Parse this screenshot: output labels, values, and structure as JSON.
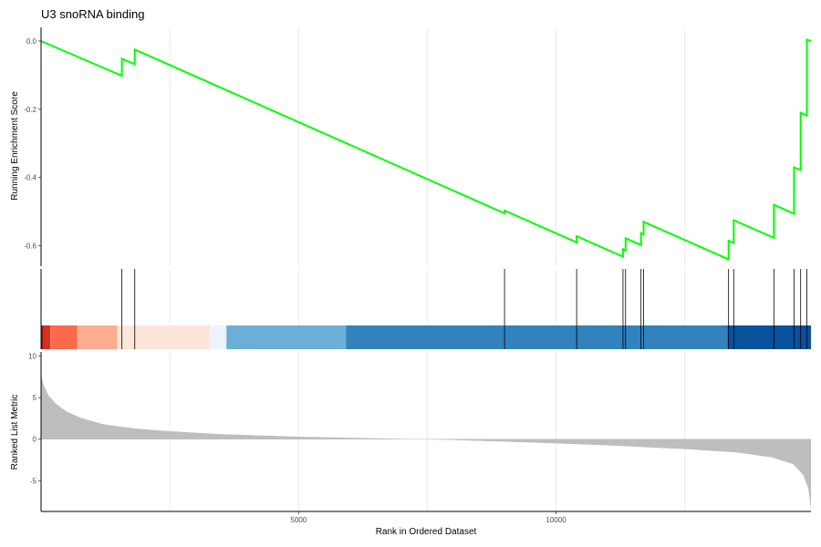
{
  "chart_data": {
    "type": "line",
    "title": "U3 snoRNA binding",
    "xlabel": "Rank in Ordered Dataset",
    "x_ticks": [
      5000,
      10000
    ],
    "xlim": [
      0,
      14950
    ],
    "panels": [
      {
        "name": "running_enrichment",
        "ylabel": "Running Enrichment Score",
        "ylim": [
          -0.66,
          0.04
        ],
        "y_ticks": [
          0.0,
          -0.2,
          -0.4,
          -0.6
        ],
        "line_color": "#00ff00",
        "hits": [
          1570,
          1820,
          9000,
          10400,
          11300,
          11350,
          11650,
          11700,
          13350,
          13450,
          14230,
          14620,
          14750,
          14870
        ],
        "running_score": [
          [
            0,
            0.0
          ],
          [
            1570,
            -0.102
          ],
          [
            1570,
            -0.052
          ],
          [
            1820,
            -0.068
          ],
          [
            1820,
            -0.025
          ],
          [
            9000,
            -0.505
          ],
          [
            9000,
            -0.497
          ],
          [
            10400,
            -0.59
          ],
          [
            10400,
            -0.572
          ],
          [
            11300,
            -0.632
          ],
          [
            11300,
            -0.61
          ],
          [
            11350,
            -0.614
          ],
          [
            11350,
            -0.578
          ],
          [
            11650,
            -0.598
          ],
          [
            11650,
            -0.563
          ],
          [
            11700,
            -0.566
          ],
          [
            11700,
            -0.53
          ],
          [
            13350,
            -0.64
          ],
          [
            13350,
            -0.585
          ],
          [
            13450,
            -0.592
          ],
          [
            13450,
            -0.525
          ],
          [
            14230,
            -0.577
          ],
          [
            14230,
            -0.48
          ],
          [
            14620,
            -0.506
          ],
          [
            14620,
            -0.37
          ],
          [
            14750,
            -0.378
          ],
          [
            14750,
            -0.21
          ],
          [
            14870,
            -0.218
          ],
          [
            14870,
            0.004
          ],
          [
            14950,
            0.0
          ]
        ]
      },
      {
        "name": "rank_color_bar",
        "segments": [
          {
            "x0": 0,
            "x1": 50,
            "color": "#a50f15"
          },
          {
            "x0": 50,
            "x1": 180,
            "color": "#d7301f"
          },
          {
            "x0": 180,
            "x1": 700,
            "color": "#fb6a4a"
          },
          {
            "x0": 700,
            "x1": 1480,
            "color": "#fcae91"
          },
          {
            "x0": 1480,
            "x1": 3280,
            "color": "#fee5d9"
          },
          {
            "x0": 3280,
            "x1": 3600,
            "color": "#eff3ff"
          },
          {
            "x0": 3600,
            "x1": 5920,
            "color": "#6baed6"
          },
          {
            "x0": 5920,
            "x1": 13330,
            "color": "#3182bd"
          },
          {
            "x0": 13330,
            "x1": 14950,
            "color": "#08519c"
          }
        ]
      },
      {
        "name": "ranked_list_metric",
        "ylabel": "Ranked List Metric",
        "ylim": [
          -8.7,
          10.5
        ],
        "y_ticks": [
          10,
          5,
          0,
          -5
        ],
        "fill_color": "#bebebe",
        "metric_curve": [
          [
            0,
            7.8
          ],
          [
            50,
            6.5
          ],
          [
            150,
            5.2
          ],
          [
            300,
            4.2
          ],
          [
            500,
            3.3
          ],
          [
            800,
            2.5
          ],
          [
            1200,
            1.8
          ],
          [
            1800,
            1.3
          ],
          [
            2500,
            0.95
          ],
          [
            3500,
            0.6
          ],
          [
            5000,
            0.3
          ],
          [
            6500,
            0.1
          ],
          [
            7300,
            0.0
          ],
          [
            8000,
            -0.1
          ],
          [
            9500,
            -0.4
          ],
          [
            11000,
            -0.75
          ],
          [
            12500,
            -1.2
          ],
          [
            13500,
            -1.6
          ],
          [
            14200,
            -2.2
          ],
          [
            14600,
            -3.0
          ],
          [
            14800,
            -4.3
          ],
          [
            14900,
            -6.0
          ],
          [
            14950,
            -8.5
          ]
        ]
      }
    ]
  }
}
